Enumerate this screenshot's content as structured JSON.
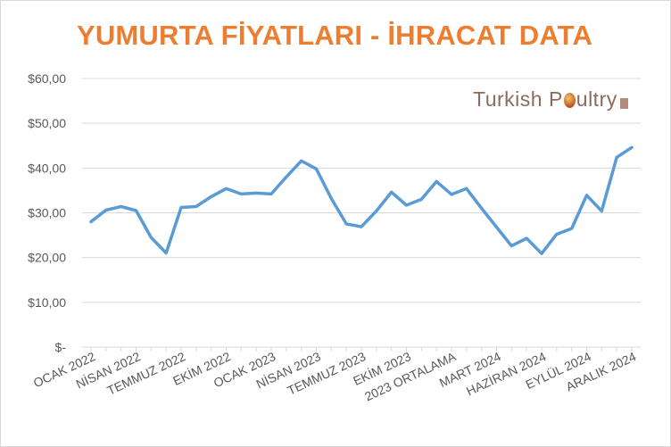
{
  "chart_data": {
    "type": "line",
    "title": "YUMURTA FİYATLARI - İHRACAT DATA",
    "watermark": "Turkish Poultry",
    "ylim": [
      0,
      60
    ],
    "grid": true,
    "legend": "none",
    "y_tick_values": [
      0,
      10,
      20,
      30,
      40,
      50,
      60
    ],
    "y_tick_labels": [
      "$-",
      "$10,00",
      "$20,00",
      "$30,00",
      "$40,00",
      "$50,00",
      "$60,00"
    ],
    "x_tick_labels": [
      {
        "index": 0,
        "label": "OCAK 2022"
      },
      {
        "index": 3,
        "label": "NİSAN 2022"
      },
      {
        "index": 6,
        "label": "TEMMUZ 2022"
      },
      {
        "index": 9,
        "label": "EKİM 2022"
      },
      {
        "index": 12,
        "label": "OCAK 2023"
      },
      {
        "index": 15,
        "label": "NİSAN 2023"
      },
      {
        "index": 18,
        "label": "TEMMUZ 2023"
      },
      {
        "index": 21,
        "label": "EKİM 2023"
      },
      {
        "index": 24,
        "label": "2023 ORTALAMA"
      },
      {
        "index": 27,
        "label": "MART 2024"
      },
      {
        "index": 30,
        "label": "HAZİRAN 2024"
      },
      {
        "index": 33,
        "label": "EYLÜL 2024"
      },
      {
        "index": 36,
        "label": "ARALIK 2024"
      }
    ],
    "series": [
      {
        "color": "#5b9bd5",
        "values": [
          28.0,
          30.6,
          31.4,
          30.5,
          24.5,
          21.0,
          31.2,
          31.4,
          33.6,
          35.4,
          34.2,
          34.4,
          34.2,
          38.0,
          41.6,
          39.8,
          33.2,
          27.5,
          26.9,
          30.4,
          34.6,
          31.7,
          33.0,
          37.0,
          34.1,
          35.4,
          31.0,
          26.8,
          22.6,
          24.3,
          20.9,
          25.2,
          26.5,
          33.9,
          30.4,
          42.4,
          44.6
        ]
      }
    ]
  }
}
